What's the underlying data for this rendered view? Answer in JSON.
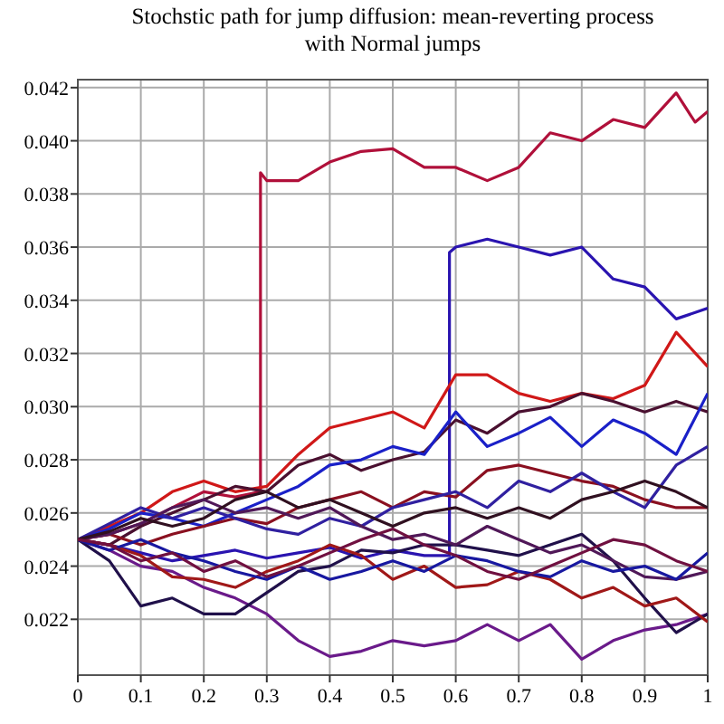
{
  "chart_data": {
    "type": "line",
    "title": "Stochstic path for jump diffusion: mean-reverting process\nwith Normal jumps",
    "x": [
      0,
      0.05,
      0.1,
      0.15,
      0.2,
      0.25,
      0.3,
      0.35,
      0.4,
      0.45,
      0.5,
      0.55,
      0.6,
      0.65,
      0.7,
      0.75,
      0.8,
      0.85,
      0.9,
      0.95,
      1
    ],
    "xlim": [
      0,
      1
    ],
    "ylim": [
      0.0199,
      0.0423
    ],
    "xticks": [
      0,
      0.1,
      0.2,
      0.3,
      0.4,
      0.5,
      0.6,
      0.7,
      0.8,
      0.9,
      1
    ],
    "yticks": [
      0.022,
      0.024,
      0.026,
      0.028,
      {
        "value": 0.03,
        "label": "0.030"
      },
      0.032,
      0.034,
      0.036,
      0.038,
      {
        "value": 0.04,
        "label": "0.040"
      },
      0.042
    ],
    "grid": true,
    "marker": "none",
    "line_style": "solid",
    "series": [
      {
        "color": "#b0103a",
        "x": [
          0,
          0.05,
          0.1,
          0.15,
          0.2,
          0.25,
          0.29,
          0.29,
          0.3,
          0.35,
          0.4,
          0.45,
          0.5,
          0.55,
          0.6,
          0.65,
          0.7,
          0.75,
          0.8,
          0.85,
          0.9,
          0.95,
          0.98,
          1
        ],
        "values": [
          0.025,
          0.0252,
          0.0256,
          0.0262,
          0.0268,
          0.0266,
          0.0268,
          0.0388,
          0.0385,
          0.0385,
          0.0392,
          0.0396,
          0.0397,
          0.039,
          0.039,
          0.0385,
          0.039,
          0.0403,
          0.04,
          0.0408,
          0.0405,
          0.0418,
          0.0407,
          0.0411
        ]
      },
      {
        "color": "#2a14b0",
        "x": [
          0,
          0.05,
          0.1,
          0.15,
          0.2,
          0.25,
          0.3,
          0.35,
          0.4,
          0.45,
          0.5,
          0.55,
          0.59,
          0.59,
          0.6,
          0.65,
          0.7,
          0.75,
          0.8,
          0.85,
          0.9,
          0.95,
          1
        ],
        "values": [
          0.025,
          0.0248,
          0.0245,
          0.0242,
          0.0244,
          0.0246,
          0.0243,
          0.0245,
          0.0247,
          0.0243,
          0.0246,
          0.0244,
          0.0244,
          0.0358,
          0.036,
          0.0363,
          0.036,
          0.0357,
          0.036,
          0.0348,
          0.0345,
          0.0333,
          0.0337
        ]
      },
      {
        "color": "#d01818",
        "values": [
          0.025,
          0.0255,
          0.026,
          0.0268,
          0.0272,
          0.0268,
          0.027,
          0.0282,
          0.0292,
          0.0295,
          0.0298,
          0.0292,
          0.0312,
          0.0312,
          0.0305,
          0.0302,
          0.0305,
          0.0303,
          0.0308,
          0.0328,
          0.0315
        ]
      },
      {
        "color": "#4a1030",
        "values": [
          0.025,
          0.0248,
          0.0255,
          0.026,
          0.0265,
          0.027,
          0.0268,
          0.0278,
          0.0282,
          0.0276,
          0.028,
          0.0283,
          0.0295,
          0.029,
          0.0298,
          0.03,
          0.0305,
          0.0302,
          0.0298,
          0.0302,
          0.0298
        ]
      },
      {
        "color": "#1a20c8",
        "values": [
          0.025,
          0.0254,
          0.026,
          0.0258,
          0.0255,
          0.026,
          0.0265,
          0.027,
          0.0278,
          0.028,
          0.0285,
          0.0282,
          0.0298,
          0.0285,
          0.029,
          0.0296,
          0.0285,
          0.0295,
          0.029,
          0.0282,
          0.0305
        ]
      },
      {
        "color": "#6a1a8a",
        "values": [
          0.025,
          0.0246,
          0.024,
          0.0238,
          0.0232,
          0.0228,
          0.0222,
          0.0212,
          0.0206,
          0.0208,
          0.0212,
          0.021,
          0.0212,
          0.0218,
          0.0212,
          0.0218,
          0.0205,
          0.0212,
          0.0216,
          0.0218,
          0.0222
        ]
      },
      {
        "color": "#20104a",
        "values": [
          0.025,
          0.0242,
          0.0225,
          0.0228,
          0.0222,
          0.0222,
          0.023,
          0.0238,
          0.024,
          0.0246,
          0.0245,
          0.0248,
          0.0248,
          0.0246,
          0.0244,
          0.0248,
          0.0252,
          0.0242,
          0.0228,
          0.0215,
          0.0222
        ]
      },
      {
        "color": "#8a1020",
        "values": [
          0.025,
          0.0252,
          0.0248,
          0.0252,
          0.0255,
          0.0258,
          0.0256,
          0.0262,
          0.0265,
          0.0268,
          0.0262,
          0.0268,
          0.0266,
          0.0276,
          0.0278,
          0.0275,
          0.0272,
          0.027,
          0.0265,
          0.0262,
          0.0262
        ]
      },
      {
        "color": "#3020a0",
        "values": [
          0.025,
          0.0256,
          0.0262,
          0.0258,
          0.0262,
          0.0258,
          0.0254,
          0.0252,
          0.0258,
          0.0255,
          0.0262,
          0.0265,
          0.0268,
          0.0262,
          0.0272,
          0.0268,
          0.0275,
          0.0268,
          0.0262,
          0.0278,
          0.0285
        ]
      },
      {
        "color": "#a01818",
        "values": [
          0.025,
          0.0248,
          0.0244,
          0.0236,
          0.0235,
          0.0232,
          0.0238,
          0.0242,
          0.0248,
          0.0244,
          0.0235,
          0.024,
          0.0232,
          0.0233,
          0.0238,
          0.0235,
          0.0228,
          0.0232,
          0.0225,
          0.0228,
          0.0219
        ]
      },
      {
        "color": "#501858",
        "values": [
          0.025,
          0.0252,
          0.0256,
          0.0262,
          0.0265,
          0.026,
          0.0262,
          0.0258,
          0.0262,
          0.0255,
          0.025,
          0.0252,
          0.0248,
          0.0255,
          0.025,
          0.0245,
          0.0248,
          0.0242,
          0.0236,
          0.0235,
          0.0238
        ]
      },
      {
        "color": "#1818a0",
        "values": [
          0.025,
          0.0246,
          0.025,
          0.0245,
          0.0242,
          0.0238,
          0.0235,
          0.024,
          0.0235,
          0.0238,
          0.0242,
          0.0238,
          0.0244,
          0.0242,
          0.0238,
          0.0236,
          0.0242,
          0.0238,
          0.024,
          0.0235,
          0.0245
        ]
      },
      {
        "color": "#301020",
        "values": [
          0.025,
          0.0253,
          0.0258,
          0.0255,
          0.0258,
          0.0265,
          0.0268,
          0.0262,
          0.0265,
          0.026,
          0.0255,
          0.026,
          0.0262,
          0.0258,
          0.0262,
          0.0258,
          0.0265,
          0.0268,
          0.0272,
          0.0268,
          0.0262
        ]
      },
      {
        "color": "#701040",
        "values": [
          0.025,
          0.0248,
          0.0242,
          0.0245,
          0.0238,
          0.0242,
          0.0236,
          0.024,
          0.0245,
          0.025,
          0.0254,
          0.0248,
          0.0244,
          0.0238,
          0.0235,
          0.024,
          0.0245,
          0.025,
          0.0248,
          0.0242,
          0.0238
        ]
      }
    ]
  }
}
